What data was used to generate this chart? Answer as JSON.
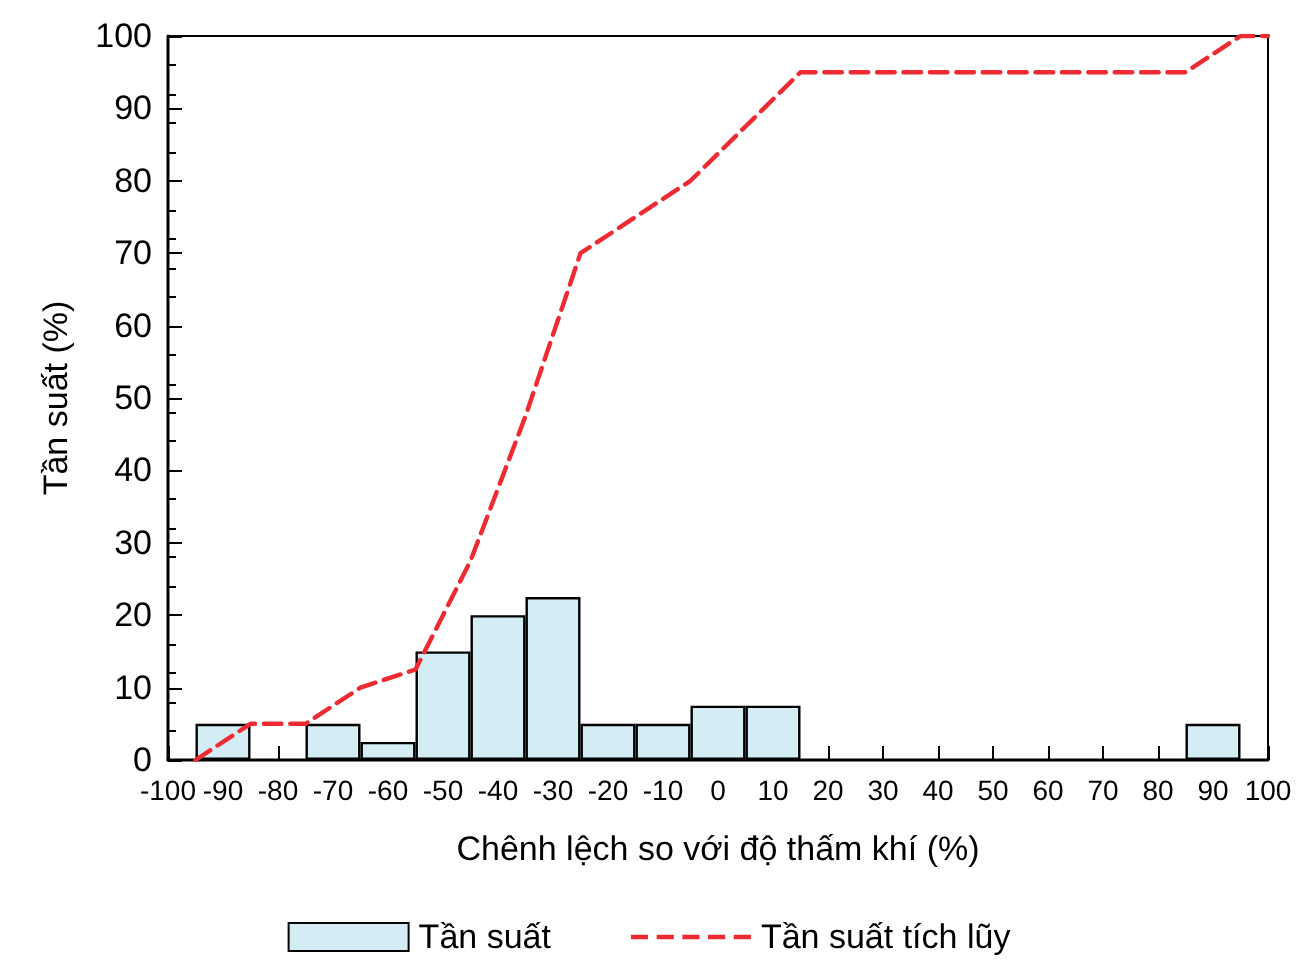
{
  "chart_data": {
    "type": "histogram",
    "xlabel": "Chênh lệch so với độ thấm khí (%)",
    "ylabel": "Tần suất (%)",
    "bins": [
      -95,
      -85,
      -75,
      -65,
      -55,
      -45,
      -35,
      -25,
      -15,
      -5,
      5,
      15,
      25,
      35,
      45,
      55,
      65,
      75,
      85,
      95
    ],
    "series": [
      {
        "name": "Tần suất",
        "color": "#d4ecf3",
        "values": [
          5,
          0,
          5,
          2.5,
          15,
          20,
          22.5,
          5,
          5,
          7.5,
          7.5,
          0,
          0,
          0,
          0,
          0,
          0,
          0,
          5
        ]
      },
      {
        "name": "Tần suất tích lũy",
        "type": "line",
        "color": "#ee2a33",
        "line_style": "dashed",
        "marker": "none",
        "x": [
          -95,
          -85,
          -75,
          -65,
          -55,
          -45,
          -35,
          -25,
          -15,
          -5,
          5,
          15,
          85,
          95,
          100
        ],
        "values": [
          0,
          5,
          5,
          10,
          12.5,
          27.5,
          47.5,
          70,
          75,
          80,
          87.5,
          95,
          95,
          100,
          100
        ]
      }
    ],
    "xlim": [
      -100,
      100
    ],
    "xticks": [
      -100,
      -90,
      -80,
      -70,
      -60,
      -50,
      -40,
      -30,
      -20,
      -10,
      0,
      10,
      20,
      30,
      40,
      50,
      60,
      70,
      80,
      90,
      100
    ],
    "ylim": [
      0,
      100
    ],
    "yticks": [
      0,
      10,
      20,
      30,
      40,
      50,
      60,
      70,
      80,
      90,
      100
    ],
    "grid": false,
    "legend": "bottom"
  }
}
